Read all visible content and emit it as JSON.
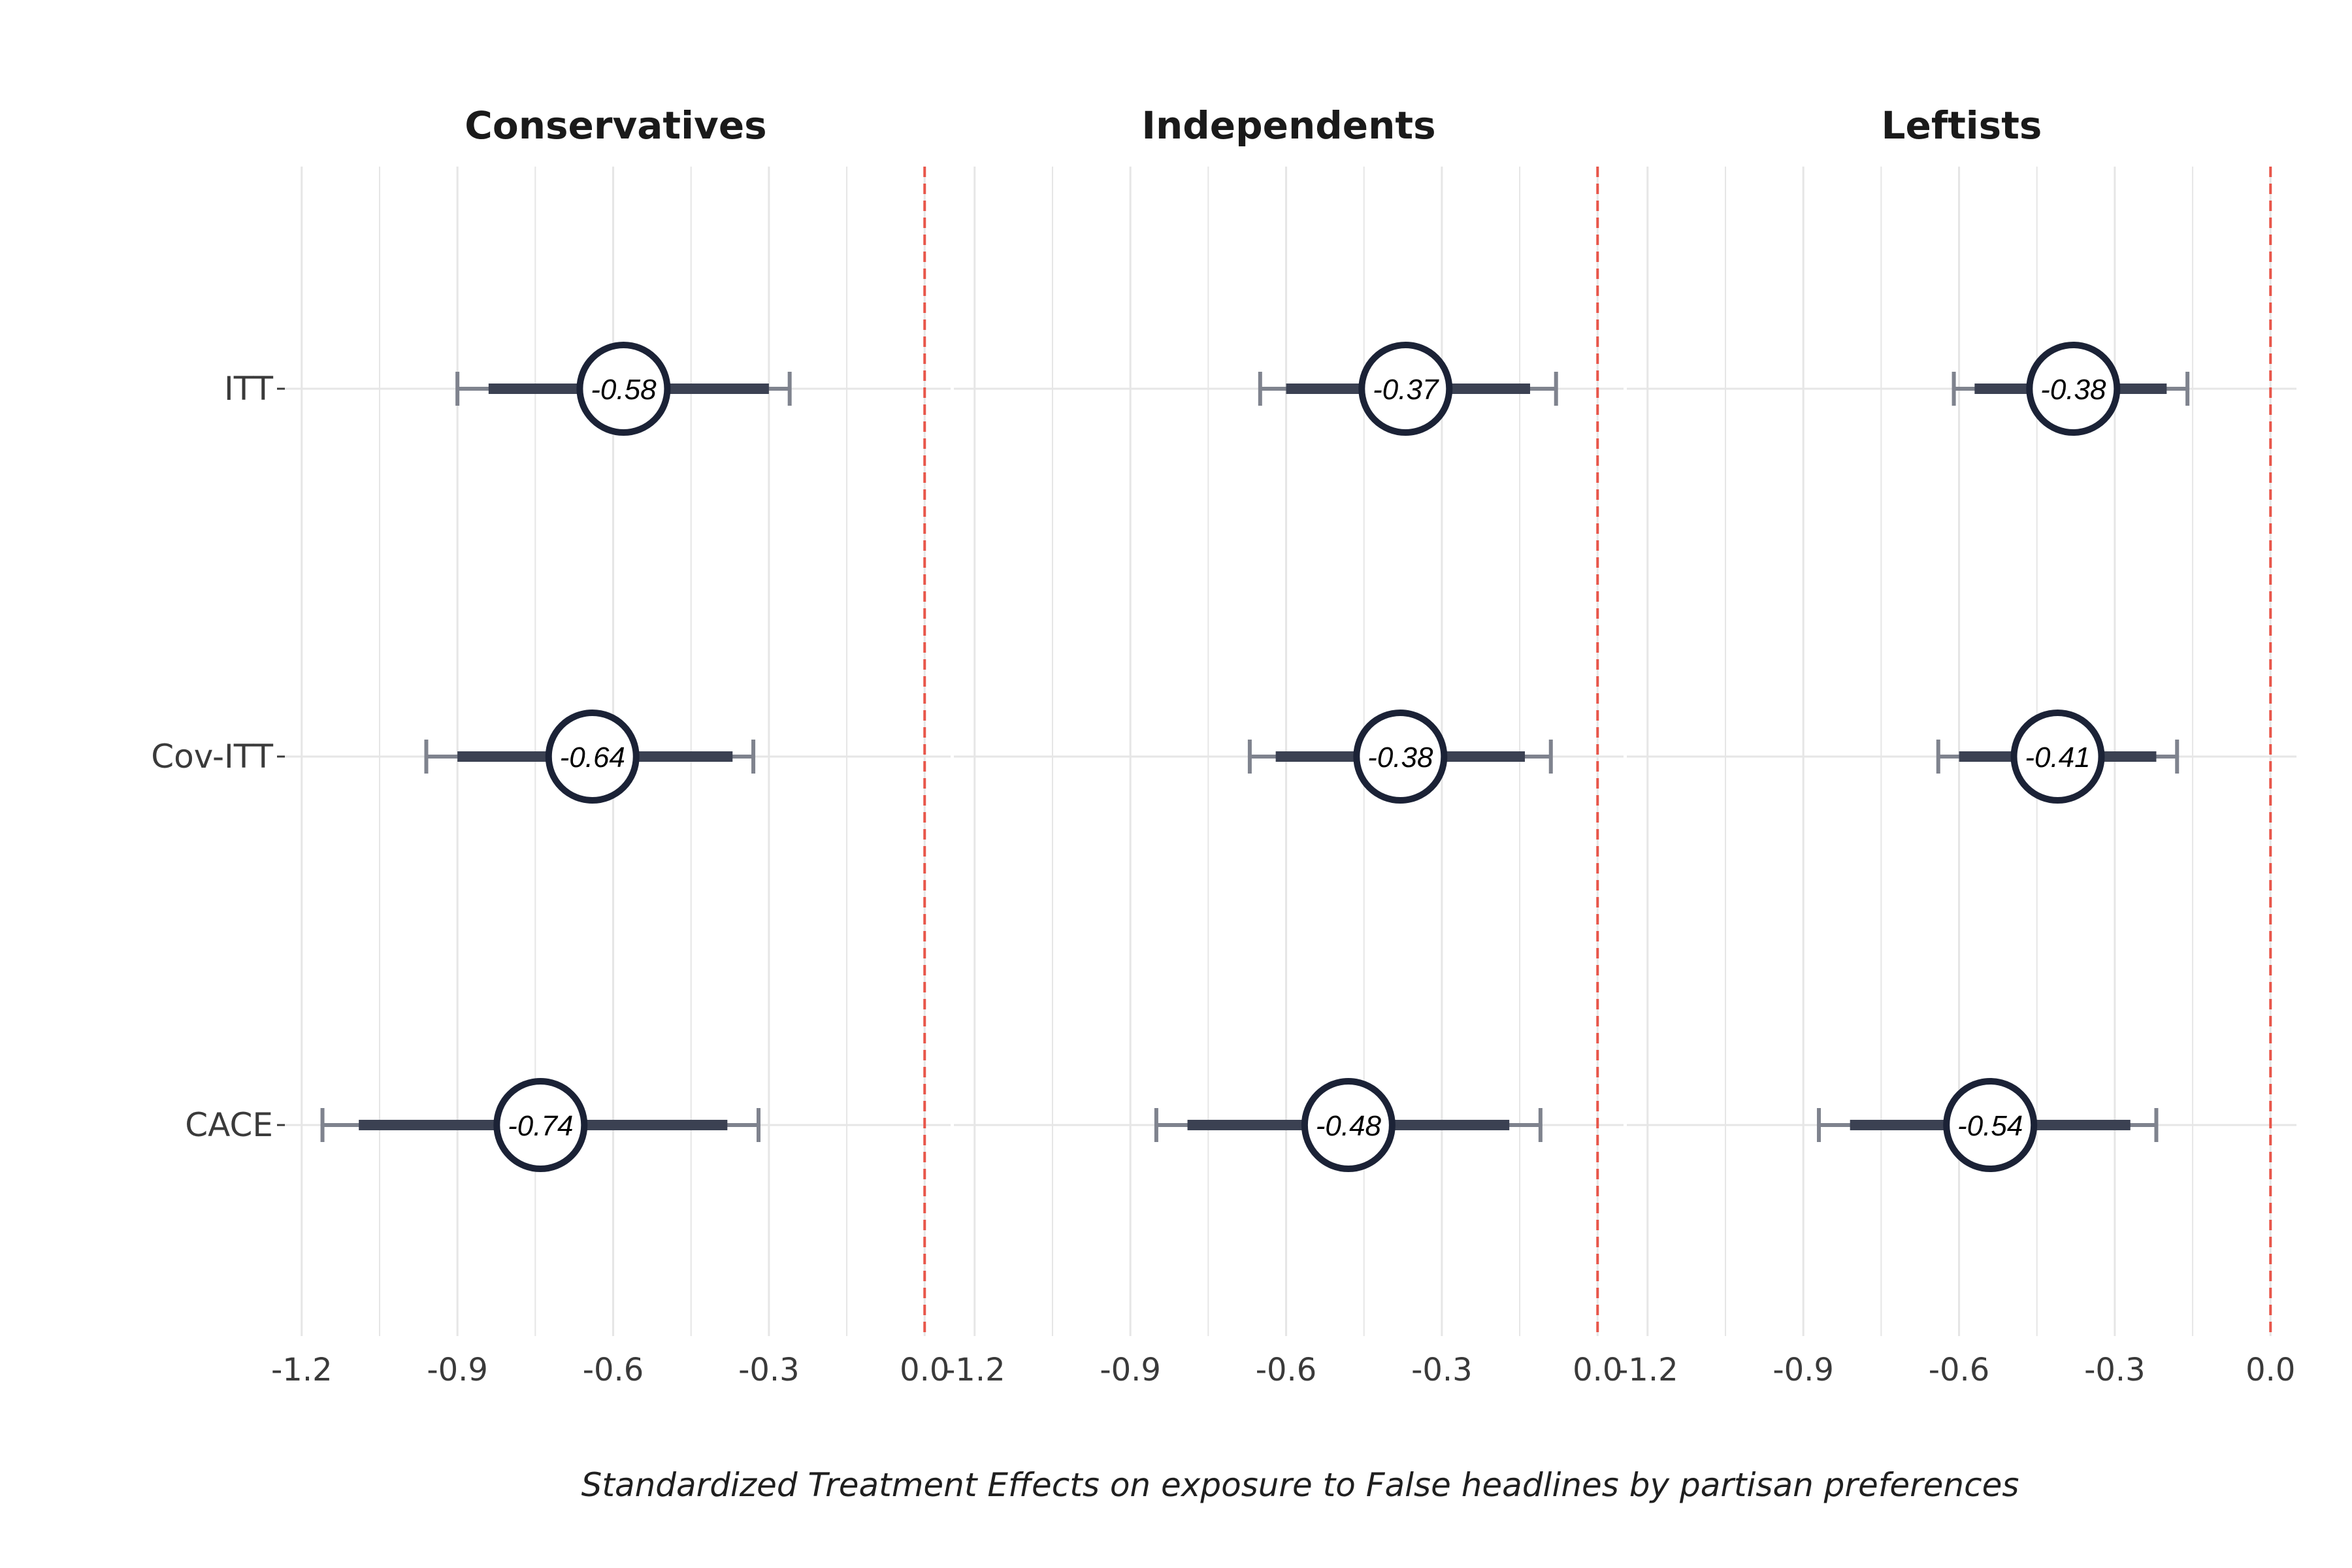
{
  "chart_data": {
    "type": "forest",
    "xlabel": "Standardized Treatment Effects on exposure to False headlines by partisan preferences",
    "ylabel": "",
    "estimators": [
      "ITT",
      "Cov-ITT",
      "CACE"
    ],
    "xlim": [
      -1.24,
      0.05
    ],
    "x_ticks": [
      -1.2,
      -0.9,
      -0.6,
      -0.3,
      0.0
    ],
    "x_tick_labels": [
      "-1.2",
      "-0.9",
      "-0.6",
      "-0.3",
      "0.0"
    ],
    "reference_line": 0.0,
    "grid": true,
    "colors": {
      "point_outline": "#1b2236",
      "inner_interval": "#3b4152",
      "outer_interval": "#7f838e",
      "reference_line": "#e8564a",
      "grid": "#e6e6e6"
    },
    "panels": [
      {
        "title": "Conservatives",
        "rows": [
          {
            "estimator": "ITT",
            "estimate": -0.58,
            "label": "-0.58",
            "ci90": [
              -0.84,
              -0.3
            ],
            "ci95": [
              -0.9,
              -0.26
            ]
          },
          {
            "estimator": "Cov-ITT",
            "estimate": -0.64,
            "label": "-0.64",
            "ci90": [
              -0.9,
              -0.37
            ],
            "ci95": [
              -0.96,
              -0.33
            ]
          },
          {
            "estimator": "CACE",
            "estimate": -0.74,
            "label": "-0.74",
            "ci90": [
              -1.09,
              -0.38
            ],
            "ci95": [
              -1.16,
              -0.32
            ]
          }
        ]
      },
      {
        "title": "Independents",
        "rows": [
          {
            "estimator": "ITT",
            "estimate": -0.37,
            "label": "-0.37",
            "ci90": [
              -0.6,
              -0.13
            ],
            "ci95": [
              -0.65,
              -0.08
            ]
          },
          {
            "estimator": "Cov-ITT",
            "estimate": -0.38,
            "label": "-0.38",
            "ci90": [
              -0.62,
              -0.14
            ],
            "ci95": [
              -0.67,
              -0.09
            ]
          },
          {
            "estimator": "CACE",
            "estimate": -0.48,
            "label": "-0.48",
            "ci90": [
              -0.79,
              -0.17
            ],
            "ci95": [
              -0.85,
              -0.11
            ]
          }
        ]
      },
      {
        "title": "Leftists",
        "rows": [
          {
            "estimator": "ITT",
            "estimate": -0.38,
            "label": "-0.38",
            "ci90": [
              -0.57,
              -0.2
            ],
            "ci95": [
              -0.61,
              -0.16
            ]
          },
          {
            "estimator": "Cov-ITT",
            "estimate": -0.41,
            "label": "-0.41",
            "ci90": [
              -0.6,
              -0.22
            ],
            "ci95": [
              -0.64,
              -0.18
            ]
          },
          {
            "estimator": "CACE",
            "estimate": -0.54,
            "label": "-0.54",
            "ci90": [
              -0.81,
              -0.27
            ],
            "ci95": [
              -0.87,
              -0.22
            ]
          }
        ]
      }
    ]
  }
}
